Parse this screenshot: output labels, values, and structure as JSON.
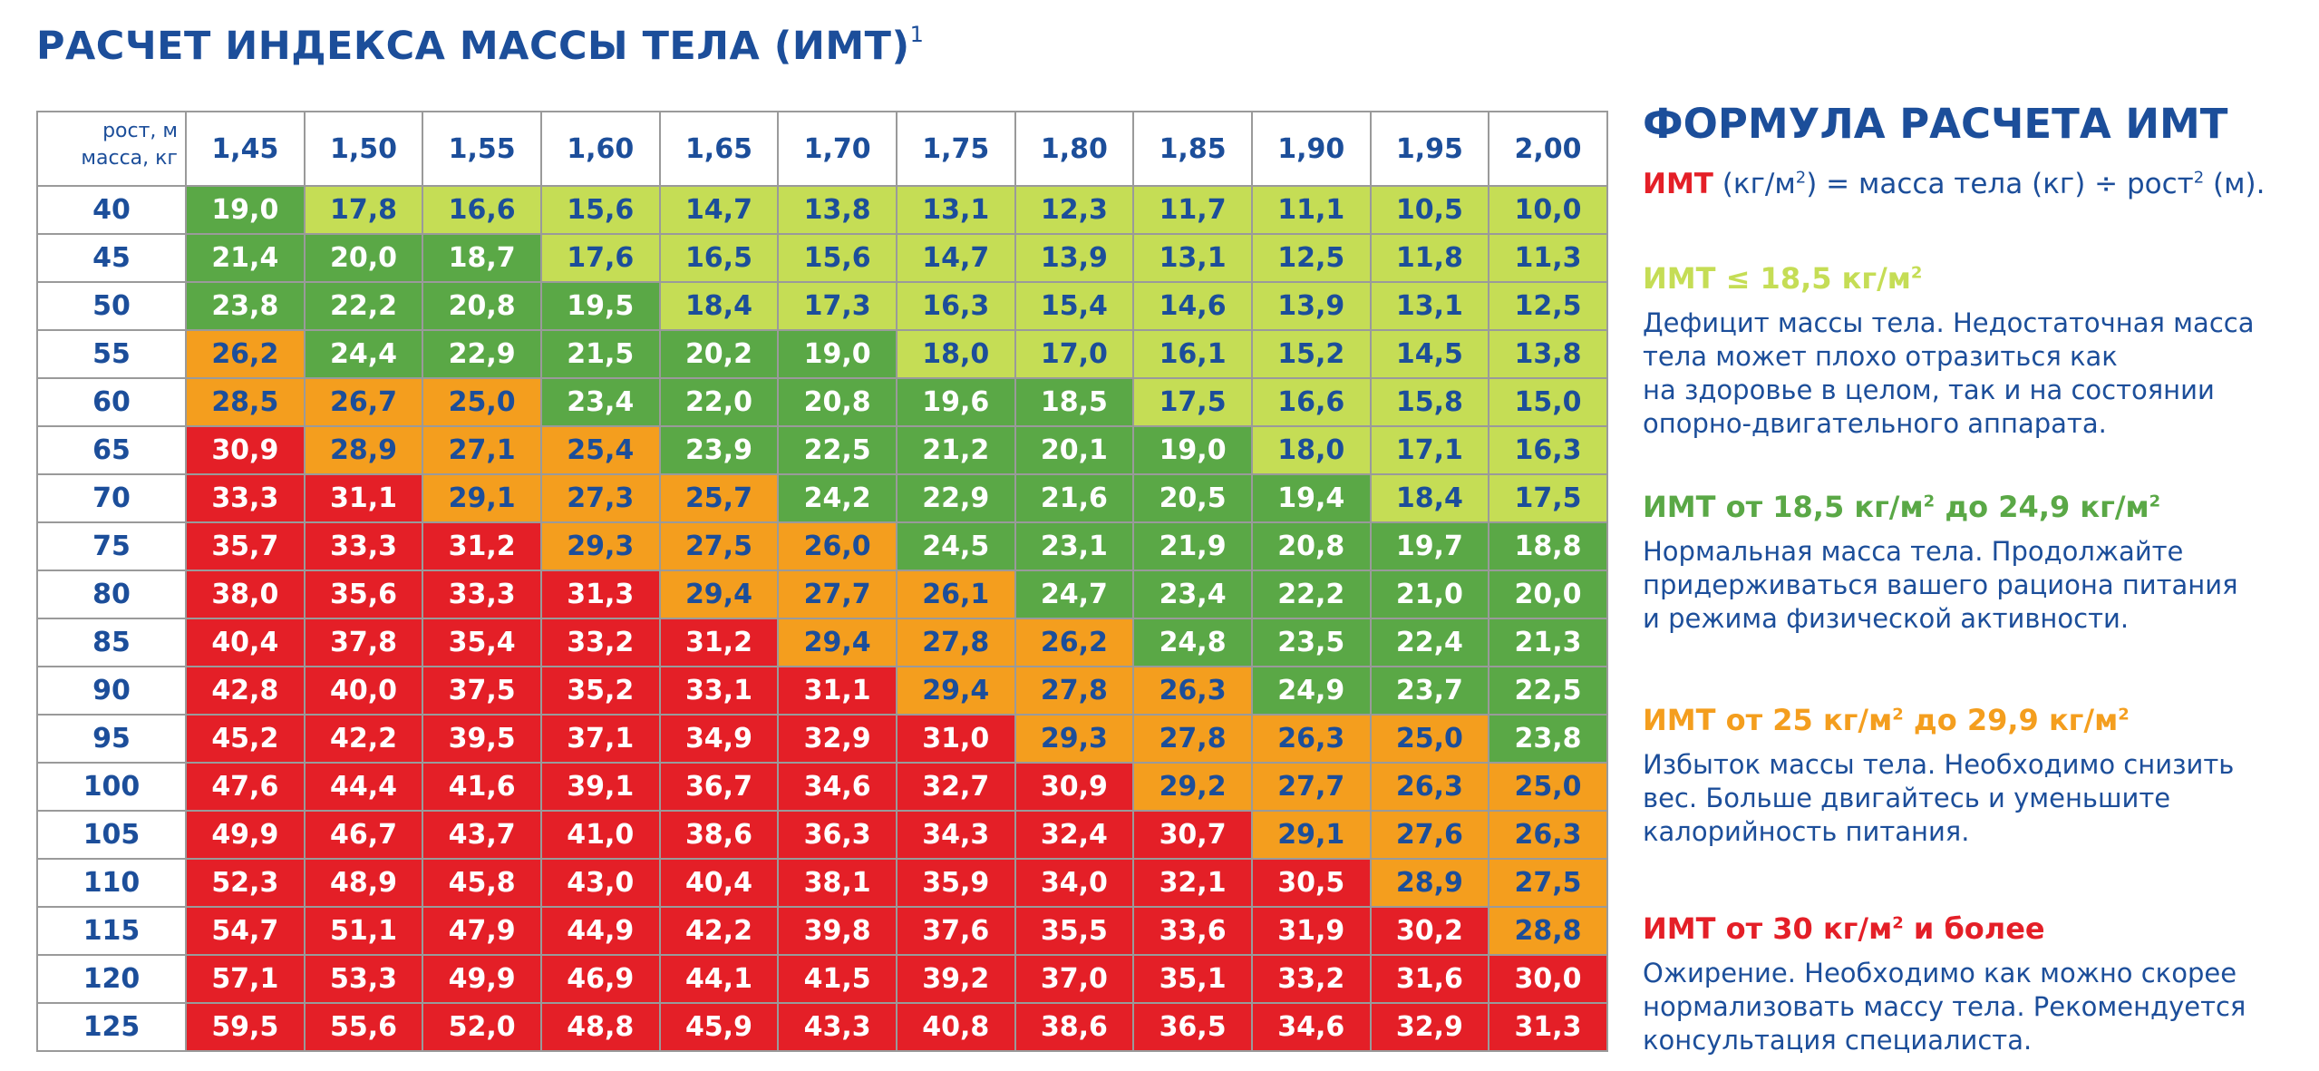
{
  "title": "РАСЧЕТ ИНДЕКСА МАССЫ ТЕЛА (ИМТ)",
  "title_footnote": "1",
  "table": {
    "corner_height_label": "рост, м",
    "corner_weight_label": "масса, кг",
    "heights": [
      "1,45",
      "1,50",
      "1,55",
      "1,60",
      "1,65",
      "1,70",
      "1,75",
      "1,80",
      "1,85",
      "1,90",
      "1,95",
      "2,00"
    ],
    "rows": [
      {
        "weight": "40",
        "values": [
          "19,0",
          "17,8",
          "16,6",
          "15,6",
          "14,7",
          "13,8",
          "13,1",
          "12,3",
          "11,7",
          "11,1",
          "10,5",
          "10,0"
        ]
      },
      {
        "weight": "45",
        "values": [
          "21,4",
          "20,0",
          "18,7",
          "17,6",
          "16,5",
          "15,6",
          "14,7",
          "13,9",
          "13,1",
          "12,5",
          "11,8",
          "11,3"
        ]
      },
      {
        "weight": "50",
        "values": [
          "23,8",
          "22,2",
          "20,8",
          "19,5",
          "18,4",
          "17,3",
          "16,3",
          "15,4",
          "14,6",
          "13,9",
          "13,1",
          "12,5"
        ]
      },
      {
        "weight": "55",
        "values": [
          "26,2",
          "24,4",
          "22,9",
          "21,5",
          "20,2",
          "19,0",
          "18,0",
          "17,0",
          "16,1",
          "15,2",
          "14,5",
          "13,8"
        ]
      },
      {
        "weight": "60",
        "values": [
          "28,5",
          "26,7",
          "25,0",
          "23,4",
          "22,0",
          "20,8",
          "19,6",
          "18,5",
          "17,5",
          "16,6",
          "15,8",
          "15,0"
        ]
      },
      {
        "weight": "65",
        "values": [
          "30,9",
          "28,9",
          "27,1",
          "25,4",
          "23,9",
          "22,5",
          "21,2",
          "20,1",
          "19,0",
          "18,0",
          "17,1",
          "16,3"
        ]
      },
      {
        "weight": "70",
        "values": [
          "33,3",
          "31,1",
          "29,1",
          "27,3",
          "25,7",
          "24,2",
          "22,9",
          "21,6",
          "20,5",
          "19,4",
          "18,4",
          "17,5"
        ]
      },
      {
        "weight": "75",
        "values": [
          "35,7",
          "33,3",
          "31,2",
          "29,3",
          "27,5",
          "26,0",
          "24,5",
          "23,1",
          "21,9",
          "20,8",
          "19,7",
          "18,8"
        ]
      },
      {
        "weight": "80",
        "values": [
          "38,0",
          "35,6",
          "33,3",
          "31,3",
          "29,4",
          "27,7",
          "26,1",
          "24,7",
          "23,4",
          "22,2",
          "21,0",
          "20,0"
        ]
      },
      {
        "weight": "85",
        "values": [
          "40,4",
          "37,8",
          "35,4",
          "33,2",
          "31,2",
          "29,4",
          "27,8",
          "26,2",
          "24,8",
          "23,5",
          "22,4",
          "21,3"
        ]
      },
      {
        "weight": "90",
        "values": [
          "42,8",
          "40,0",
          "37,5",
          "35,2",
          "33,1",
          "31,1",
          "29,4",
          "27,8",
          "26,3",
          "24,9",
          "23,7",
          "22,5"
        ]
      },
      {
        "weight": "95",
        "values": [
          "45,2",
          "42,2",
          "39,5",
          "37,1",
          "34,9",
          "32,9",
          "31,0",
          "29,3",
          "27,8",
          "26,3",
          "25,0",
          "23,8"
        ]
      },
      {
        "weight": "100",
        "values": [
          "47,6",
          "44,4",
          "41,6",
          "39,1",
          "36,7",
          "34,6",
          "32,7",
          "30,9",
          "29,2",
          "27,7",
          "26,3",
          "25,0"
        ]
      },
      {
        "weight": "105",
        "values": [
          "49,9",
          "46,7",
          "43,7",
          "41,0",
          "38,6",
          "36,3",
          "34,3",
          "32,4",
          "30,7",
          "29,1",
          "27,6",
          "26,3"
        ]
      },
      {
        "weight": "110",
        "values": [
          "52,3",
          "48,9",
          "45,8",
          "43,0",
          "40,4",
          "38,1",
          "35,9",
          "34,0",
          "32,1",
          "30,5",
          "28,9",
          "27,5"
        ]
      },
      {
        "weight": "115",
        "values": [
          "54,7",
          "51,1",
          "47,9",
          "44,9",
          "42,2",
          "39,8",
          "37,6",
          "35,5",
          "33,6",
          "31,9",
          "30,2",
          "28,8"
        ]
      },
      {
        "weight": "120",
        "values": [
          "57,1",
          "53,3",
          "49,9",
          "46,9",
          "44,1",
          "41,5",
          "39,2",
          "37,0",
          "35,1",
          "33,2",
          "31,6",
          "30,0"
        ]
      },
      {
        "weight": "125",
        "values": [
          "59,5",
          "55,6",
          "52,0",
          "48,8",
          "45,9",
          "43,3",
          "40,8",
          "38,6",
          "36,5",
          "34,6",
          "32,9",
          "31,3"
        ]
      }
    ]
  },
  "colors": {
    "underweight": "#c5dd55",
    "normal": "#5aa846",
    "overweight": "#f49e1e",
    "obese": "#e41f27",
    "text_blue": "#1c4e9a"
  },
  "formula": {
    "heading": "ФОРМУЛА РАСЧЕТА ИМТ",
    "bmi_word": "ИМТ",
    "text_part1": " (кг/м",
    "sup1": "2",
    "text_part2": ") = масса тела (кг) ÷ рост",
    "sup2": "2",
    "text_part3": " (м)."
  },
  "categories": [
    {
      "key": "underweight",
      "head": "ИМТ ≤ 18,5 кг/м",
      "sup": "2",
      "head_tail": "",
      "desc": "Дефицит массы тела. Недостаточная масса\nтела может плохо отразиться как\nна здоровье в целом, так и на состоянии\nопорно-двигательного аппарата."
    },
    {
      "key": "normal",
      "head": "ИМТ от 18,5 кг/м",
      "sup": "2",
      "head_tail": " до 24,9 кг/м",
      "sup_tail": "2",
      "desc": "Нормальная масса тела. Продолжайте\nпридерживаться вашего рациона питания\nи режима физической активности."
    },
    {
      "key": "overweight",
      "head": "ИМТ от 25 кг/м",
      "sup": "2",
      "head_tail": " до 29,9 кг/м",
      "sup_tail": "2",
      "desc": "Избыток массы тела. Необходимо снизить\nвес. Больше двигайтесь и уменьшите\nкалорийность питания."
    },
    {
      "key": "obese",
      "head": "ИМТ от 30 кг/м",
      "sup": "2",
      "head_tail": " и более",
      "desc": "Ожирение. Необходимо как можно скорее\nнормализовать массу тела. Рекомендуется\nконсультация специалиста."
    }
  ]
}
